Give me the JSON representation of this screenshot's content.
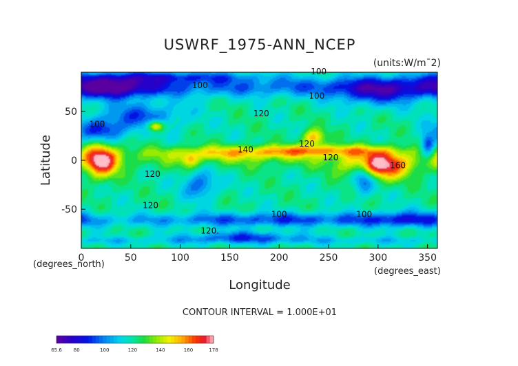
{
  "chart_data": {
    "type": "heatmap",
    "title": "USWRF_1975-ANN_NCEP",
    "units_label": "(units:W/m¯2)",
    "xlabel": "Longitude",
    "ylabel": "Latitude",
    "x_unit_label": "(degrees_east)",
    "y_unit_label": "(degrees_north)",
    "xlim": [
      0,
      360
    ],
    "ylim": [
      -90,
      90
    ],
    "x_ticks": [
      0,
      50,
      100,
      150,
      200,
      250,
      300,
      350
    ],
    "y_ticks": [
      -50,
      0,
      50
    ],
    "contour_interval_text": "CONTOUR INTERVAL = 1.000E+01",
    "contour_labels": [
      {
        "text": "100",
        "lon": 120,
        "lat": 74
      },
      {
        "text": "100",
        "lon": 240,
        "lat": 88
      },
      {
        "text": "100",
        "lon": 238,
        "lat": 63
      },
      {
        "text": "120",
        "lon": 182,
        "lat": 45
      },
      {
        "text": "100",
        "lon": 16,
        "lat": 34
      },
      {
        "text": "120",
        "lon": 228,
        "lat": 14
      },
      {
        "text": "140",
        "lon": 166,
        "lat": 8
      },
      {
        "text": "120",
        "lon": 72,
        "lat": -17
      },
      {
        "text": "120",
        "lon": 70,
        "lat": -49
      },
      {
        "text": "100",
        "lon": 200,
        "lat": -58
      },
      {
        "text": "100",
        "lon": 286,
        "lat": -58
      },
      {
        "text": "120.",
        "lon": 130,
        "lat": -75
      },
      {
        "text": "120",
        "lon": 252,
        "lat": 0
      },
      {
        "text": "160",
        "lon": 320,
        "lat": -8
      }
    ],
    "colorbar": {
      "min": 65.6,
      "max": 178,
      "tick_labels": [
        "65.6",
        "80",
        "100",
        "120",
        "140",
        "160",
        "178"
      ],
      "tick_values": [
        65.6,
        80,
        100,
        120,
        140,
        160,
        178
      ]
    },
    "features": [
      {
        "lon": 20,
        "lat": 0,
        "value": 175,
        "rlon": 12,
        "rlat": 12
      },
      {
        "lon": 110,
        "lat": 0,
        "value": 142,
        "rlon": 6,
        "rlat": 5
      },
      {
        "lon": 300,
        "lat": -5,
        "value": 176,
        "rlon": 22,
        "rlat": 10
      },
      {
        "lon": 160,
        "lat": 8,
        "value": 146,
        "rlon": 60,
        "rlat": 5
      },
      {
        "lon": 250,
        "lat": 10,
        "value": 146,
        "rlon": 45,
        "rlat": 4
      },
      {
        "lon": 235,
        "lat": 23,
        "value": 155,
        "rlon": 8,
        "rlat": 6
      },
      {
        "lon": 75,
        "lat": 35,
        "value": 165,
        "rlon": 6,
        "rlat": 4
      },
      {
        "lon": 285,
        "lat": -15,
        "value": 85,
        "rlon": 8,
        "rlat": 12
      },
      {
        "lon": 30,
        "lat": 75,
        "value": 80,
        "rlon": 30,
        "rlat": 8
      },
      {
        "lon": 300,
        "lat": 70,
        "value": 90,
        "rlon": 30,
        "rlat": 10
      },
      {
        "lon": 90,
        "lat": 85,
        "value": 95,
        "rlon": 60,
        "rlat": 4
      },
      {
        "lon": 20,
        "lat": 30,
        "value": 92,
        "rlon": 18,
        "rlat": 8
      },
      {
        "lon": 60,
        "lat": 45,
        "value": 95,
        "rlon": 30,
        "rlat": 10
      },
      {
        "lon": 120,
        "lat": -25,
        "value": 95,
        "rlon": 12,
        "rlat": 10
      },
      {
        "lon": 200,
        "lat": -60,
        "value": 100,
        "rlon": 90,
        "rlat": 5
      },
      {
        "lon": 165,
        "lat": -78,
        "value": 96,
        "rlon": 40,
        "rlat": 4
      },
      {
        "lon": 350,
        "lat": 15,
        "value": 88,
        "rlon": 5,
        "rlat": 8
      },
      {
        "lon": 330,
        "lat": -60,
        "value": 98,
        "rlon": 30,
        "rlat": 6
      }
    ]
  }
}
